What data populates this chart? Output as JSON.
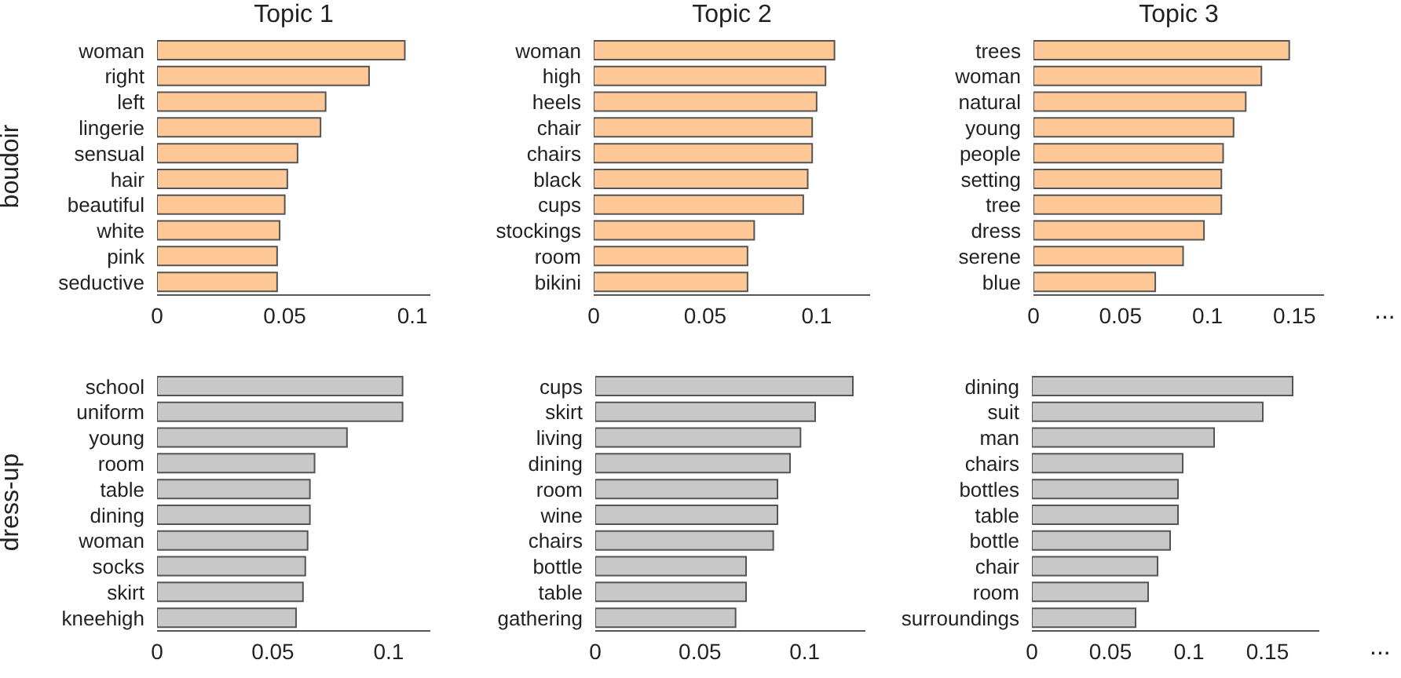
{
  "chart_data": [
    {
      "type": "bar",
      "orientation": "horizontal",
      "title": "Topic 1",
      "ylabel": "boudoir",
      "categories": [
        "woman",
        "right",
        "left",
        "lingerie",
        "sensual",
        "hair",
        "beautiful",
        "white",
        "pink",
        "seductive"
      ],
      "values": [
        0.097,
        0.083,
        0.066,
        0.064,
        0.055,
        0.051,
        0.05,
        0.048,
        0.047,
        0.047
      ],
      "color": "#ffc896",
      "xlim": [
        0,
        0.107
      ],
      "xticks": [
        0,
        0.05,
        0.1
      ]
    },
    {
      "type": "bar",
      "orientation": "horizontal",
      "title": "Topic 2",
      "categories": [
        "woman",
        "high",
        "heels",
        "chair",
        "chairs",
        "black",
        "cups",
        "stockings",
        "room",
        "bikini"
      ],
      "values": [
        0.108,
        0.104,
        0.1,
        0.098,
        0.098,
        0.096,
        0.094,
        0.072,
        0.069,
        0.069
      ],
      "color": "#ffc896",
      "xlim": [
        0,
        0.124
      ],
      "xticks": [
        0,
        0.05,
        0.1
      ]
    },
    {
      "type": "bar",
      "orientation": "horizontal",
      "title": "Topic 3",
      "categories": [
        "trees",
        "woman",
        "natural",
        "young",
        "people",
        "setting",
        "tree",
        "dress",
        "serene",
        "blue"
      ],
      "values": [
        0.147,
        0.131,
        0.122,
        0.115,
        0.109,
        0.108,
        0.108,
        0.098,
        0.086,
        0.07
      ],
      "color": "#ffc896",
      "xlim": [
        0,
        0.167
      ],
      "xticks": [
        0,
        0.05,
        0.1,
        0.15
      ],
      "annotations": [
        "..."
      ]
    },
    {
      "type": "bar",
      "orientation": "horizontal",
      "ylabel": "dress-up",
      "categories": [
        "school",
        "uniform",
        "young",
        "room",
        "table",
        "dining",
        "woman",
        "socks",
        "skirt",
        "kneehigh"
      ],
      "values": [
        0.106,
        0.106,
        0.082,
        0.068,
        0.066,
        0.066,
        0.065,
        0.064,
        0.063,
        0.06
      ],
      "color": "#c8c8c8",
      "xlim": [
        0,
        0.118
      ],
      "xticks": [
        0,
        0.05,
        0.1
      ]
    },
    {
      "type": "bar",
      "orientation": "horizontal",
      "categories": [
        "cups",
        "skirt",
        "living",
        "dining",
        "room",
        "wine",
        "chairs",
        "bottle",
        "table",
        "gathering"
      ],
      "values": [
        0.123,
        0.105,
        0.098,
        0.093,
        0.087,
        0.087,
        0.085,
        0.072,
        0.072,
        0.067
      ],
      "color": "#c8c8c8",
      "xlim": [
        0,
        0.129
      ],
      "xticks": [
        0,
        0.05,
        0.1
      ]
    },
    {
      "type": "bar",
      "orientation": "horizontal",
      "categories": [
        "dining",
        "suit",
        "man",
        "chairs",
        "bottles",
        "table",
        "bottle",
        "chair",
        "room",
        "surroundings"
      ],
      "values": [
        0.166,
        0.147,
        0.116,
        0.096,
        0.093,
        0.093,
        0.088,
        0.08,
        0.074,
        0.066
      ],
      "color": "#c8c8c8",
      "xlim": [
        0,
        0.183
      ],
      "xticks": [
        0,
        0.05,
        0.1,
        0.15
      ],
      "annotations": [
        "..."
      ]
    }
  ]
}
